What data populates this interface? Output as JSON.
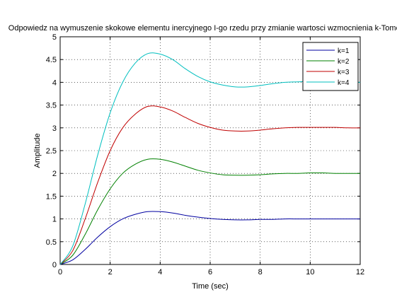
{
  "chart_data": {
    "type": "line",
    "title": "Odpowiedz na wymuszenie skokowe elementu inercyjnego I-go rzedu przy zmianie wartosci wzmocnienia k-Tomczak",
    "xlabel": "Time (sec)",
    "ylabel": "Amplitude",
    "xlim": [
      0,
      12
    ],
    "ylim": [
      0,
      5
    ],
    "xticks": [
      "0",
      "2",
      "4",
      "6",
      "8",
      "10",
      "12"
    ],
    "yticks": [
      "0",
      "0.5",
      "1",
      "1.5",
      "2",
      "2.5",
      "3",
      "3.5",
      "4",
      "4.5",
      "5"
    ],
    "grid": true,
    "legend_position": "top-right",
    "x": [
      0,
      0.5,
      1,
      1.5,
      2,
      2.5,
      3,
      3.5,
      4,
      4.5,
      5,
      5.5,
      6,
      6.5,
      7,
      7.5,
      8,
      8.5,
      9,
      9.5,
      10,
      10.5,
      11,
      11.5,
      12
    ],
    "series": [
      {
        "name": "k=1",
        "color": "#0000a0",
        "values": [
          0,
          0.1,
          0.33,
          0.6,
          0.83,
          1.0,
          1.1,
          1.16,
          1.16,
          1.13,
          1.08,
          1.04,
          1.01,
          0.99,
          0.98,
          0.98,
          0.99,
          0.99,
          1.0,
          1.0,
          1.0,
          1.0,
          1.0,
          1.0,
          1.0
        ]
      },
      {
        "name": "k=2",
        "color": "#008000",
        "values": [
          0,
          0.2,
          0.66,
          1.2,
          1.66,
          2.0,
          2.2,
          2.31,
          2.31,
          2.25,
          2.16,
          2.07,
          2.01,
          1.97,
          1.96,
          1.96,
          1.97,
          1.99,
          2.0,
          2.0,
          2.01,
          2.01,
          2.0,
          2.0,
          2.0
        ]
      },
      {
        "name": "k=3",
        "color": "#c00000",
        "values": [
          0,
          0.3,
          1.0,
          1.8,
          2.5,
          3.0,
          3.3,
          3.47,
          3.46,
          3.37,
          3.23,
          3.1,
          3.01,
          2.95,
          2.93,
          2.93,
          2.95,
          2.98,
          3.0,
          3.01,
          3.01,
          3.01,
          3.01,
          3.0,
          3.0
        ]
      },
      {
        "name": "k=4",
        "color": "#00bfbf",
        "values": [
          0,
          0.4,
          1.33,
          2.4,
          3.33,
          4.0,
          4.42,
          4.63,
          4.62,
          4.5,
          4.3,
          4.13,
          4.01,
          3.94,
          3.9,
          3.9,
          3.93,
          3.97,
          4.0,
          4.01,
          4.02,
          4.02,
          4.01,
          4.0,
          4.0
        ]
      }
    ]
  }
}
